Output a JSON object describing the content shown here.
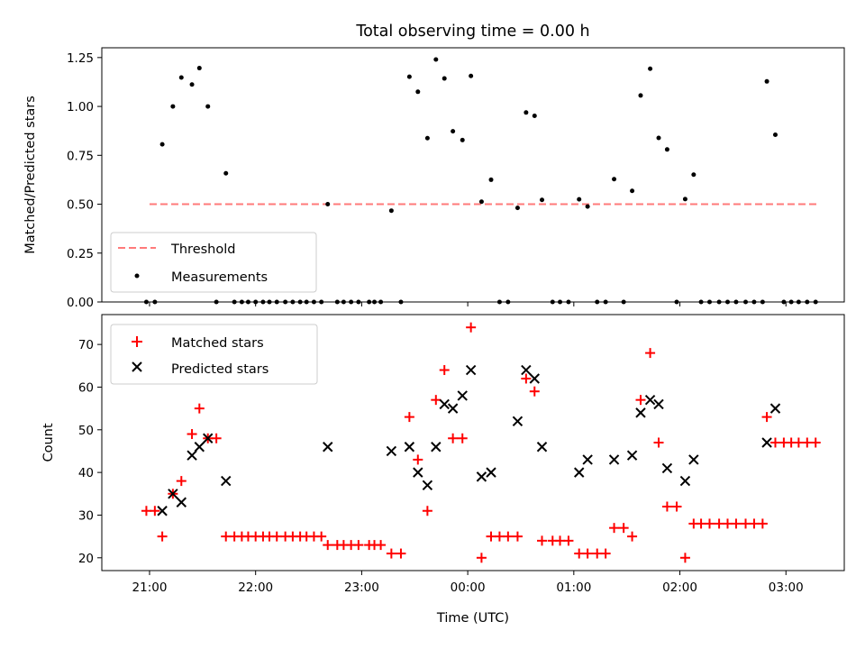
{
  "chart_data": [
    {
      "type": "scatter",
      "title": "Total observing time = 0.00 h",
      "xlabel": "",
      "ylabel": "Matched/Predicted stars",
      "ylim": [
        0,
        1.3
      ],
      "yticks": [
        "0.00",
        "0.25",
        "0.50",
        "0.75",
        "1.00",
        "1.25"
      ],
      "xticks": [
        "21:00",
        "22:00",
        "23:00",
        "00:00",
        "01:00",
        "02:00",
        "03:00"
      ],
      "xlim_hours": [
        20.55,
        27.55
      ],
      "threshold": {
        "name": "Threshold",
        "y": 0.5,
        "x_range": [
          21.0,
          27.3
        ],
        "color": "#ff7a7a"
      },
      "measurements": {
        "name": "Measurements",
        "color": "#000000",
        "points": [
          [
            20.97,
            0
          ],
          [
            21.05,
            0
          ],
          [
            21.12,
            0.806
          ],
          [
            21.22,
            1.0
          ],
          [
            21.3,
            1.148
          ],
          [
            21.4,
            1.112
          ],
          [
            21.47,
            1.196
          ],
          [
            21.55,
            1.0
          ],
          [
            21.63,
            0
          ],
          [
            21.72,
            0.658
          ],
          [
            21.8,
            0
          ],
          [
            21.87,
            0
          ],
          [
            21.93,
            0
          ],
          [
            22.0,
            0
          ],
          [
            22.07,
            0
          ],
          [
            22.13,
            0
          ],
          [
            22.2,
            0
          ],
          [
            22.28,
            0
          ],
          [
            22.35,
            0
          ],
          [
            22.42,
            0
          ],
          [
            22.48,
            0
          ],
          [
            22.55,
            0
          ],
          [
            22.62,
            0
          ],
          [
            22.68,
            0.5
          ],
          [
            22.77,
            0
          ],
          [
            22.83,
            0
          ],
          [
            22.9,
            0
          ],
          [
            22.97,
            0
          ],
          [
            23.07,
            0
          ],
          [
            23.12,
            0
          ],
          [
            23.18,
            0
          ],
          [
            23.28,
            0.467
          ],
          [
            23.37,
            0
          ],
          [
            23.45,
            1.152
          ],
          [
            23.53,
            1.075
          ],
          [
            23.62,
            0.838
          ],
          [
            23.7,
            1.24
          ],
          [
            23.78,
            1.143
          ],
          [
            23.86,
            0.873
          ],
          [
            23.95,
            0.828
          ],
          [
            24.03,
            1.156
          ],
          [
            24.13,
            0.513
          ],
          [
            24.22,
            0.625
          ],
          [
            24.3,
            0
          ],
          [
            24.38,
            0
          ],
          [
            24.47,
            0.481
          ],
          [
            24.55,
            0.969
          ],
          [
            24.63,
            0.952
          ],
          [
            24.7,
            0.522
          ],
          [
            24.8,
            0
          ],
          [
            24.87,
            0
          ],
          [
            24.95,
            0
          ],
          [
            25.05,
            0.525
          ],
          [
            25.13,
            0.488
          ],
          [
            25.22,
            0
          ],
          [
            25.3,
            0
          ],
          [
            25.38,
            0.628
          ],
          [
            25.47,
            0
          ],
          [
            25.55,
            0.568
          ],
          [
            25.63,
            1.056
          ],
          [
            25.72,
            1.193
          ],
          [
            25.8,
            0.839
          ],
          [
            25.88,
            0.78
          ],
          [
            25.97,
            0
          ],
          [
            26.05,
            0.526
          ],
          [
            26.13,
            0.651
          ],
          [
            26.2,
            0
          ],
          [
            26.28,
            0
          ],
          [
            26.37,
            0
          ],
          [
            26.45,
            0
          ],
          [
            26.53,
            0
          ],
          [
            26.62,
            0
          ],
          [
            26.7,
            0
          ],
          [
            26.78,
            0
          ],
          [
            26.82,
            1.128
          ],
          [
            26.9,
            0.855
          ],
          [
            26.98,
            0
          ],
          [
            27.05,
            0
          ],
          [
            27.12,
            0
          ],
          [
            27.2,
            0
          ],
          [
            27.28,
            0
          ]
        ]
      },
      "legend": {
        "location": "lower left",
        "entries": [
          "Threshold",
          "Measurements"
        ]
      }
    },
    {
      "type": "scatter",
      "title": "",
      "xlabel": "Time (UTC)",
      "ylabel": "Count",
      "ylim": [
        17,
        77
      ],
      "yticks": [
        "20",
        "30",
        "40",
        "50",
        "60",
        "70"
      ],
      "xticks": [
        "21:00",
        "22:00",
        "23:00",
        "00:00",
        "01:00",
        "02:00",
        "03:00"
      ],
      "xlim_hours": [
        20.55,
        27.55
      ],
      "legend": {
        "location": "upper left",
        "entries": [
          "Matched stars",
          "Predicted stars"
        ]
      },
      "series": [
        {
          "name": "Matched stars",
          "marker": "plus",
          "color": "#ff0000",
          "points": [
            [
              20.97,
              31
            ],
            [
              21.05,
              31
            ],
            [
              21.12,
              25
            ],
            [
              21.22,
              35
            ],
            [
              21.3,
              38
            ],
            [
              21.4,
              49
            ],
            [
              21.47,
              55
            ],
            [
              21.55,
              48
            ],
            [
              21.63,
              48
            ],
            [
              21.72,
              25
            ],
            [
              21.8,
              25
            ],
            [
              21.87,
              25
            ],
            [
              21.93,
              25
            ],
            [
              22.0,
              25
            ],
            [
              22.07,
              25
            ],
            [
              22.13,
              25
            ],
            [
              22.2,
              25
            ],
            [
              22.28,
              25
            ],
            [
              22.35,
              25
            ],
            [
              22.42,
              25
            ],
            [
              22.48,
              25
            ],
            [
              22.55,
              25
            ],
            [
              22.62,
              25
            ],
            [
              22.68,
              23
            ],
            [
              22.77,
              23
            ],
            [
              22.83,
              23
            ],
            [
              22.9,
              23
            ],
            [
              22.97,
              23
            ],
            [
              23.07,
              23
            ],
            [
              23.12,
              23
            ],
            [
              23.18,
              23
            ],
            [
              23.28,
              21
            ],
            [
              23.37,
              21
            ],
            [
              23.45,
              53
            ],
            [
              23.53,
              43
            ],
            [
              23.62,
              31
            ],
            [
              23.7,
              57
            ],
            [
              23.78,
              64
            ],
            [
              23.86,
              48
            ],
            [
              23.95,
              48
            ],
            [
              24.03,
              74
            ],
            [
              24.13,
              20
            ],
            [
              24.22,
              25
            ],
            [
              24.3,
              25
            ],
            [
              24.38,
              25
            ],
            [
              24.47,
              25
            ],
            [
              24.55,
              62
            ],
            [
              24.63,
              59
            ],
            [
              24.7,
              24
            ],
            [
              24.8,
              24
            ],
            [
              24.87,
              24
            ],
            [
              24.95,
              24
            ],
            [
              25.05,
              21
            ],
            [
              25.13,
              21
            ],
            [
              25.22,
              21
            ],
            [
              25.3,
              21
            ],
            [
              25.38,
              27
            ],
            [
              25.47,
              27
            ],
            [
              25.55,
              25
            ],
            [
              25.63,
              57
            ],
            [
              25.72,
              68
            ],
            [
              25.8,
              47
            ],
            [
              25.88,
              32
            ],
            [
              25.97,
              32
            ],
            [
              26.05,
              20
            ],
            [
              26.13,
              28
            ],
            [
              26.2,
              28
            ],
            [
              26.28,
              28
            ],
            [
              26.37,
              28
            ],
            [
              26.45,
              28
            ],
            [
              26.53,
              28
            ],
            [
              26.62,
              28
            ],
            [
              26.7,
              28
            ],
            [
              26.78,
              28
            ],
            [
              26.82,
              53
            ],
            [
              26.9,
              47
            ],
            [
              26.98,
              47
            ],
            [
              27.05,
              47
            ],
            [
              27.12,
              47
            ],
            [
              27.2,
              47
            ],
            [
              27.28,
              47
            ]
          ]
        },
        {
          "name": "Predicted stars",
          "marker": "x",
          "color": "#000000",
          "points": [
            [
              21.12,
              31
            ],
            [
              21.22,
              35
            ],
            [
              21.3,
              33
            ],
            [
              21.4,
              44
            ],
            [
              21.47,
              46
            ],
            [
              21.55,
              48
            ],
            [
              21.72,
              38
            ],
            [
              22.68,
              46
            ],
            [
              23.28,
              45
            ],
            [
              23.45,
              46
            ],
            [
              23.53,
              40
            ],
            [
              23.62,
              37
            ],
            [
              23.7,
              46
            ],
            [
              23.78,
              56
            ],
            [
              23.86,
              55
            ],
            [
              23.95,
              58
            ],
            [
              24.03,
              64
            ],
            [
              24.13,
              39
            ],
            [
              24.22,
              40
            ],
            [
              24.47,
              52
            ],
            [
              24.55,
              64
            ],
            [
              24.63,
              62
            ],
            [
              24.7,
              46
            ],
            [
              25.05,
              40
            ],
            [
              25.13,
              43
            ],
            [
              25.38,
              43
            ],
            [
              25.55,
              44
            ],
            [
              25.63,
              54
            ],
            [
              25.72,
              57
            ],
            [
              25.8,
              56
            ],
            [
              25.88,
              41
            ],
            [
              26.05,
              38
            ],
            [
              26.13,
              43
            ],
            [
              26.82,
              47
            ],
            [
              26.9,
              55
            ]
          ]
        }
      ]
    }
  ]
}
